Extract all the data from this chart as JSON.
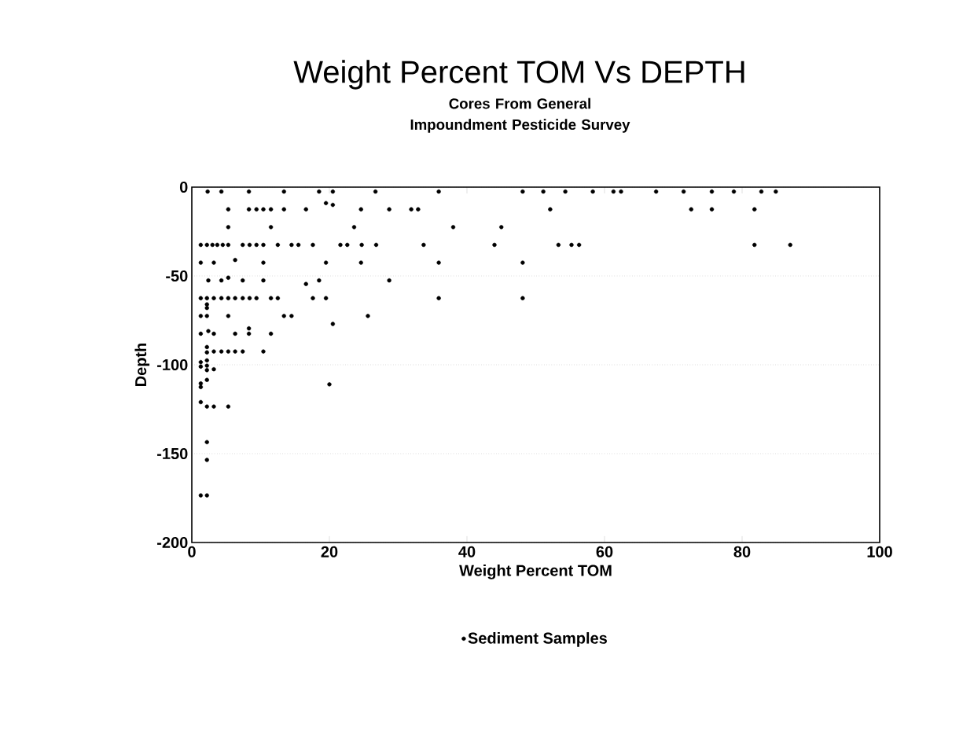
{
  "chart_data": {
    "type": "scatter",
    "title": "Weight Percent TOM Vs DEPTH",
    "subtitle": "Cores From General Impoundment Pesticide Survey",
    "xlabel": "Weight Percent TOM",
    "ylabel": "Depth",
    "xlim": [
      0,
      100
    ],
    "ylim": [
      -200,
      0
    ],
    "xticks": [
      0,
      20,
      40,
      60,
      80,
      100
    ],
    "yticks": [
      -200,
      -150,
      -100,
      -50,
      0
    ],
    "grid": "y",
    "legend": "bottom",
    "marker": "circle",
    "series": [
      {
        "name": "Sediment Samples",
        "color": "#000000",
        "x": [
          2.3,
          4.3,
          8.3,
          13.4,
          18.5,
          20.5,
          26.7,
          35.9,
          48.1,
          51.1,
          54.3,
          58.3,
          61.3,
          62.4,
          67.5,
          71.5,
          75.6,
          78.8,
          82.8,
          84.9,
          5.3,
          8.3,
          9.4,
          10.4,
          11.5,
          13.4,
          16.6,
          24.6,
          28.7,
          31.9,
          32.9,
          52.1,
          72.6,
          75.6,
          81.8,
          19.5,
          20.5,
          5.3,
          11.5,
          23.6,
          38.0,
          45.0,
          1.3,
          2.2,
          3.0,
          3.7,
          4.5,
          5.3,
          7.4,
          8.4,
          9.4,
          10.4,
          12.5,
          14.5,
          15.5,
          17.6,
          21.6,
          22.6,
          24.7,
          26.8,
          33.7,
          44.0,
          53.3,
          55.2,
          56.3,
          81.8,
          87.0,
          1.3,
          3.2,
          6.3,
          10.4,
          19.5,
          24.6,
          35.9,
          48.1,
          2.4,
          4.3,
          5.3,
          7.4,
          10.4,
          18.5,
          28.7,
          16.6,
          1.3,
          2.2,
          3.2,
          4.3,
          5.3,
          6.3,
          7.4,
          8.4,
          9.4,
          11.5,
          12.5,
          17.6,
          19.5,
          35.9,
          48.1,
          2.2,
          2.2,
          1.3,
          2.2,
          5.3,
          13.4,
          14.5,
          25.6,
          20.5,
          1.3,
          2.4,
          3.2,
          6.3,
          8.3,
          11.5,
          8.3,
          2.2,
          2.2,
          3.2,
          4.3,
          5.3,
          6.3,
          7.4,
          10.4,
          2.2,
          1.3,
          1.3,
          2.2,
          2.2,
          3.2,
          2.2,
          1.3,
          1.3,
          20.0,
          1.3,
          2.2,
          3.2,
          5.3,
          2.2,
          2.2,
          1.3,
          2.2
        ],
        "values": [
          -2.5,
          -2.5,
          -2.5,
          -2.5,
          -2.5,
          -2.5,
          -2.5,
          -2.5,
          -2.5,
          -2.5,
          -2.5,
          -2.5,
          -2.5,
          -2.5,
          -2.5,
          -2.5,
          -2.5,
          -2.5,
          -2.5,
          -2.5,
          -12.5,
          -12.5,
          -12.5,
          -12.5,
          -12.5,
          -12.5,
          -12.5,
          -12.5,
          -12.5,
          -12.5,
          -12.5,
          -12.5,
          -12.5,
          -12.5,
          -12.5,
          -9,
          -10,
          -22.5,
          -22.5,
          -22.5,
          -22.5,
          -22.5,
          -32.5,
          -32.5,
          -32.5,
          -32.5,
          -32.5,
          -32.5,
          -32.5,
          -32.5,
          -32.5,
          -32.5,
          -32.5,
          -32.5,
          -32.5,
          -32.5,
          -32.5,
          -32.5,
          -32.5,
          -32.5,
          -32.5,
          -32.5,
          -32.5,
          -32.5,
          -32.5,
          -32.5,
          -32.5,
          -42.5,
          -42.5,
          -41,
          -42.5,
          -42.5,
          -42.5,
          -42.5,
          -42.5,
          -52.5,
          -52.5,
          -51,
          -52.5,
          -52.5,
          -52.5,
          -52.5,
          -54.5,
          -62.5,
          -62.5,
          -62.5,
          -62.5,
          -62.5,
          -62.5,
          -62.5,
          -62.5,
          -62.5,
          -62.5,
          -62.5,
          -62.5,
          -62.5,
          -62.5,
          -62.5,
          -66,
          -68,
          -72.5,
          -72.5,
          -72.5,
          -72.5,
          -72.5,
          -72.5,
          -77,
          -82.5,
          -81,
          -82.5,
          -82.5,
          -82.5,
          -82.5,
          -79.5,
          -90,
          -93,
          -92.5,
          -92.5,
          -92.5,
          -92.5,
          -92.5,
          -92.5,
          -97.5,
          -98.5,
          -101,
          -100.5,
          -103,
          -102.5,
          -108.5,
          -110.5,
          -112.5,
          -111,
          -121,
          -123.5,
          -123.5,
          -123.5,
          -143.5,
          -153.5,
          -173.5,
          -173.5
        ]
      }
    ]
  }
}
